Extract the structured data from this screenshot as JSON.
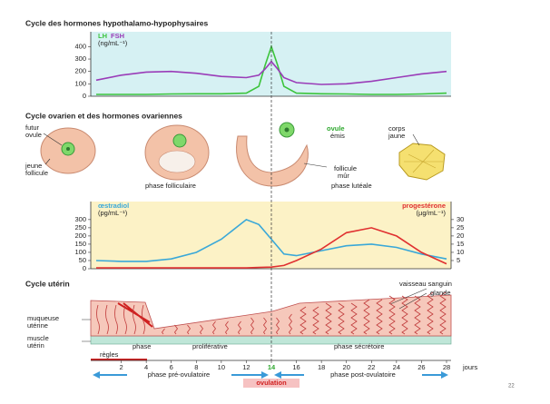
{
  "chart_data": [
    {
      "type": "line",
      "title": "Cycle des hormones hypothalamo-hypophysaires",
      "ylabel": "(ng/mL⁻¹)",
      "x": [
        0,
        2,
        4,
        6,
        8,
        10,
        12,
        13,
        13.5,
        14,
        14.5,
        15,
        16,
        18,
        20,
        22,
        24,
        26,
        28
      ],
      "xlim": [
        0,
        28
      ],
      "ylim": [
        0,
        520
      ],
      "yticks": [
        0,
        100,
        200,
        300,
        400
      ],
      "background": "#d6f1f3",
      "series": [
        {
          "name": "LH",
          "color": "#3cc43c",
          "values": [
            15,
            15,
            15,
            18,
            20,
            20,
            25,
            80,
            250,
            400,
            250,
            80,
            25,
            20,
            18,
            15,
            15,
            18,
            25
          ]
        },
        {
          "name": "FSH",
          "color": "#9a3cb8",
          "values": [
            130,
            170,
            195,
            200,
            185,
            160,
            150,
            170,
            220,
            280,
            220,
            150,
            110,
            95,
            100,
            120,
            150,
            180,
            200
          ]
        }
      ]
    },
    {
      "type": "line",
      "ylabel": "(pg/mL⁻¹)",
      "y2label": "(µg/mL⁻¹)",
      "x": [
        0,
        2,
        4,
        6,
        8,
        10,
        12,
        13,
        14,
        15,
        16,
        18,
        20,
        22,
        24,
        26,
        28
      ],
      "xlim": [
        0,
        28
      ],
      "ylim": [
        0,
        410
      ],
      "yticks": [
        0,
        50,
        100,
        150,
        200,
        250,
        300
      ],
      "y2lim": [
        0,
        41
      ],
      "y2ticks": [
        5,
        10,
        15,
        20,
        25,
        30
      ],
      "background": "#fcf2c6",
      "series": [
        {
          "name": "œstradiol",
          "color": "#3aa8d8",
          "values": [
            50,
            45,
            45,
            60,
            100,
            180,
            300,
            270,
            180,
            90,
            80,
            110,
            140,
            150,
            130,
            90,
            60
          ]
        },
        {
          "name": "progestérone",
          "color": "#e03030",
          "axis": "y2",
          "values": [
            0.5,
            0.5,
            0.5,
            0.5,
            0.5,
            0.5,
            0.5,
            0.8,
            1,
            2,
            5,
            12,
            22,
            25,
            20,
            10,
            3
          ]
        }
      ]
    }
  ],
  "day_axis": {
    "xlim": [
      0,
      28
    ],
    "xticks": [
      2,
      4,
      6,
      8,
      10,
      12,
      14,
      16,
      18,
      20,
      22,
      24,
      26,
      28
    ],
    "highlight": 14,
    "label": "jours"
  },
  "ovarian": {
    "title": "Cycle ovarien et des hormones ovariennes",
    "futur_ovule": [
      "futur",
      "ovule"
    ],
    "jeune_follicule": [
      "jeune",
      "follicule"
    ],
    "phase_folliculaire": "phase folliculaire",
    "ovule_emis": [
      "ovule",
      "émis"
    ],
    "follicule_mur": [
      "follicule",
      "mûr"
    ],
    "phase_luteale": "phase lutéale",
    "corps_jaune": [
      "corps",
      "jaune"
    ]
  },
  "uterine": {
    "title": "Cycle utérin",
    "vaisseau": "vaisseau sanguin",
    "glande": "glande",
    "muqueuse": [
      "muqueuse",
      "utérine"
    ],
    "muscle": [
      "muscle",
      "utérin"
    ],
    "phase_regles": [
      "phase",
      "règles"
    ],
    "proliferative": "proliférative",
    "secretoire": "phase sécrétoire"
  },
  "phases": {
    "pre": "phase pré-ovulatoire",
    "post": "phase post-ovulatoire",
    "ovulation": "ovulation"
  },
  "page_number": "22"
}
